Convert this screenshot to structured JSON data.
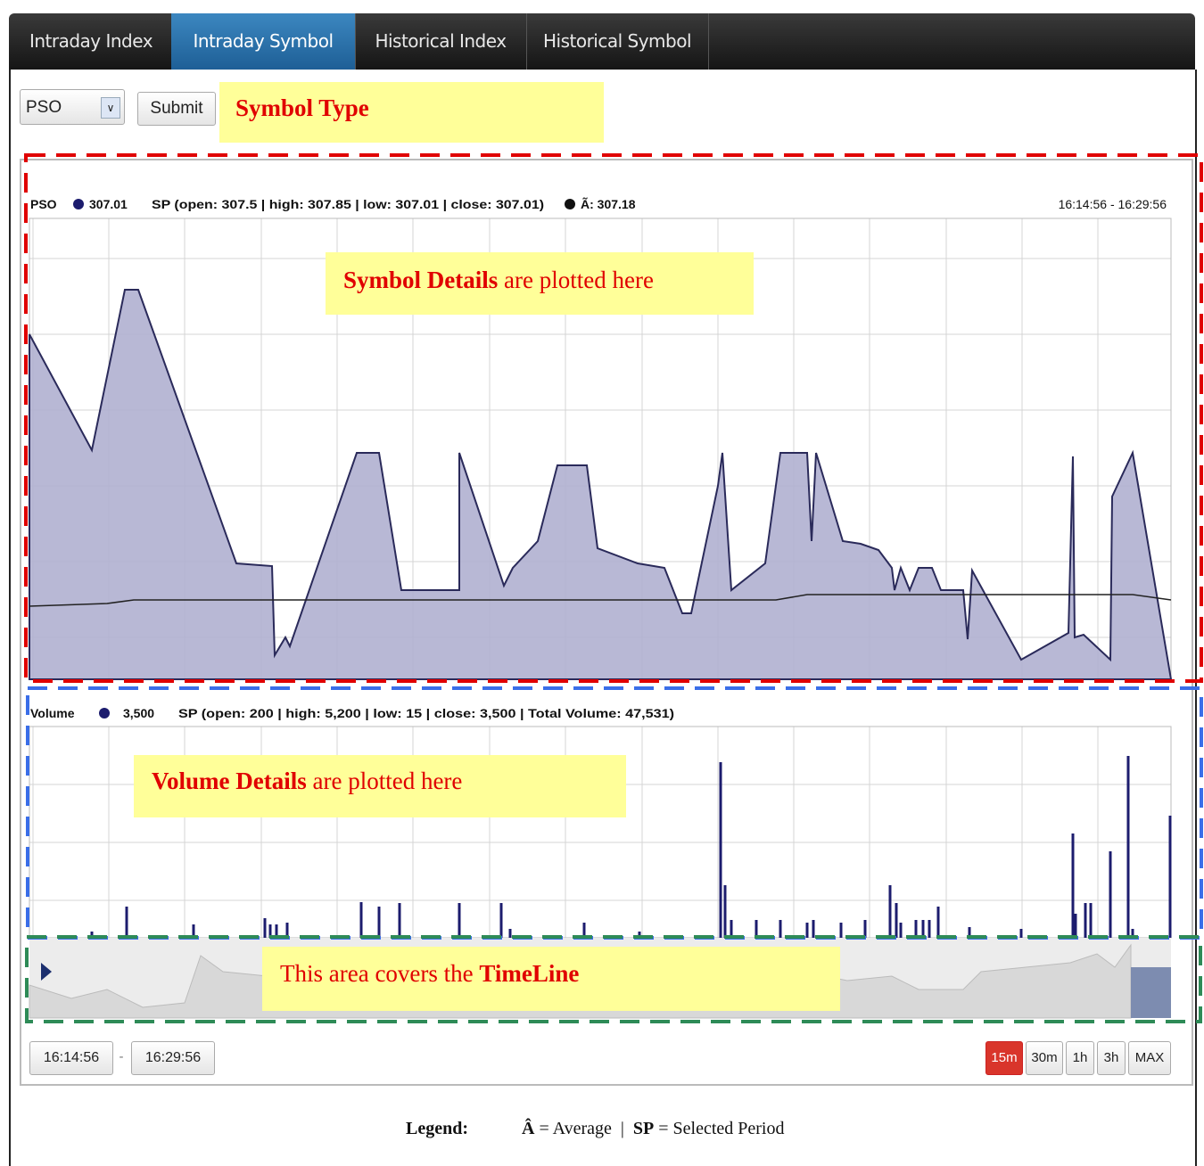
{
  "tabs": [
    "Intraday Index",
    "Intraday Symbol",
    "Historical Index",
    "Historical Symbol"
  ],
  "active_tab": 1,
  "controls": {
    "select": "PSO",
    "button": "Submit"
  },
  "annotations": {
    "symbol_type": "Symbol Type",
    "symbol_details": {
      "bold": "Symbol Details",
      "rest": " are plotted here"
    },
    "volume_details": {
      "bold": "Volume Details",
      "rest": " are plotted here"
    },
    "timeline": {
      "rest": "This area covers the ",
      "bold": "TimeLine"
    }
  },
  "price_header": {
    "symbol": "PSO",
    "value": "307.01",
    "sp": "SP (open: 307.5 | high: 307.85 | low: 307.01 | close: 307.01)",
    "avg": "Ã: 307.18",
    "range": "16:14:56 - 16:29:56"
  },
  "volume_header": {
    "label": "Volume",
    "value": "3,500",
    "sp": "SP (open: 200 | high: 5,200 | low: 15 | close: 3,500 | Total Volume: 47,531)"
  },
  "range_inputs": {
    "from": "16:14:56",
    "separator": "-",
    "to": "16:29:56"
  },
  "range_buttons": [
    "15m",
    "30m",
    "1h",
    "3h",
    "MAX"
  ],
  "selected_range": 0,
  "legend": {
    "title": "Legend:",
    "avg_symbol": "Â",
    "avg_text": "= Average",
    "divider": "|",
    "sp_symbol": "SP",
    "sp_text": "= Selected Period"
  }
}
